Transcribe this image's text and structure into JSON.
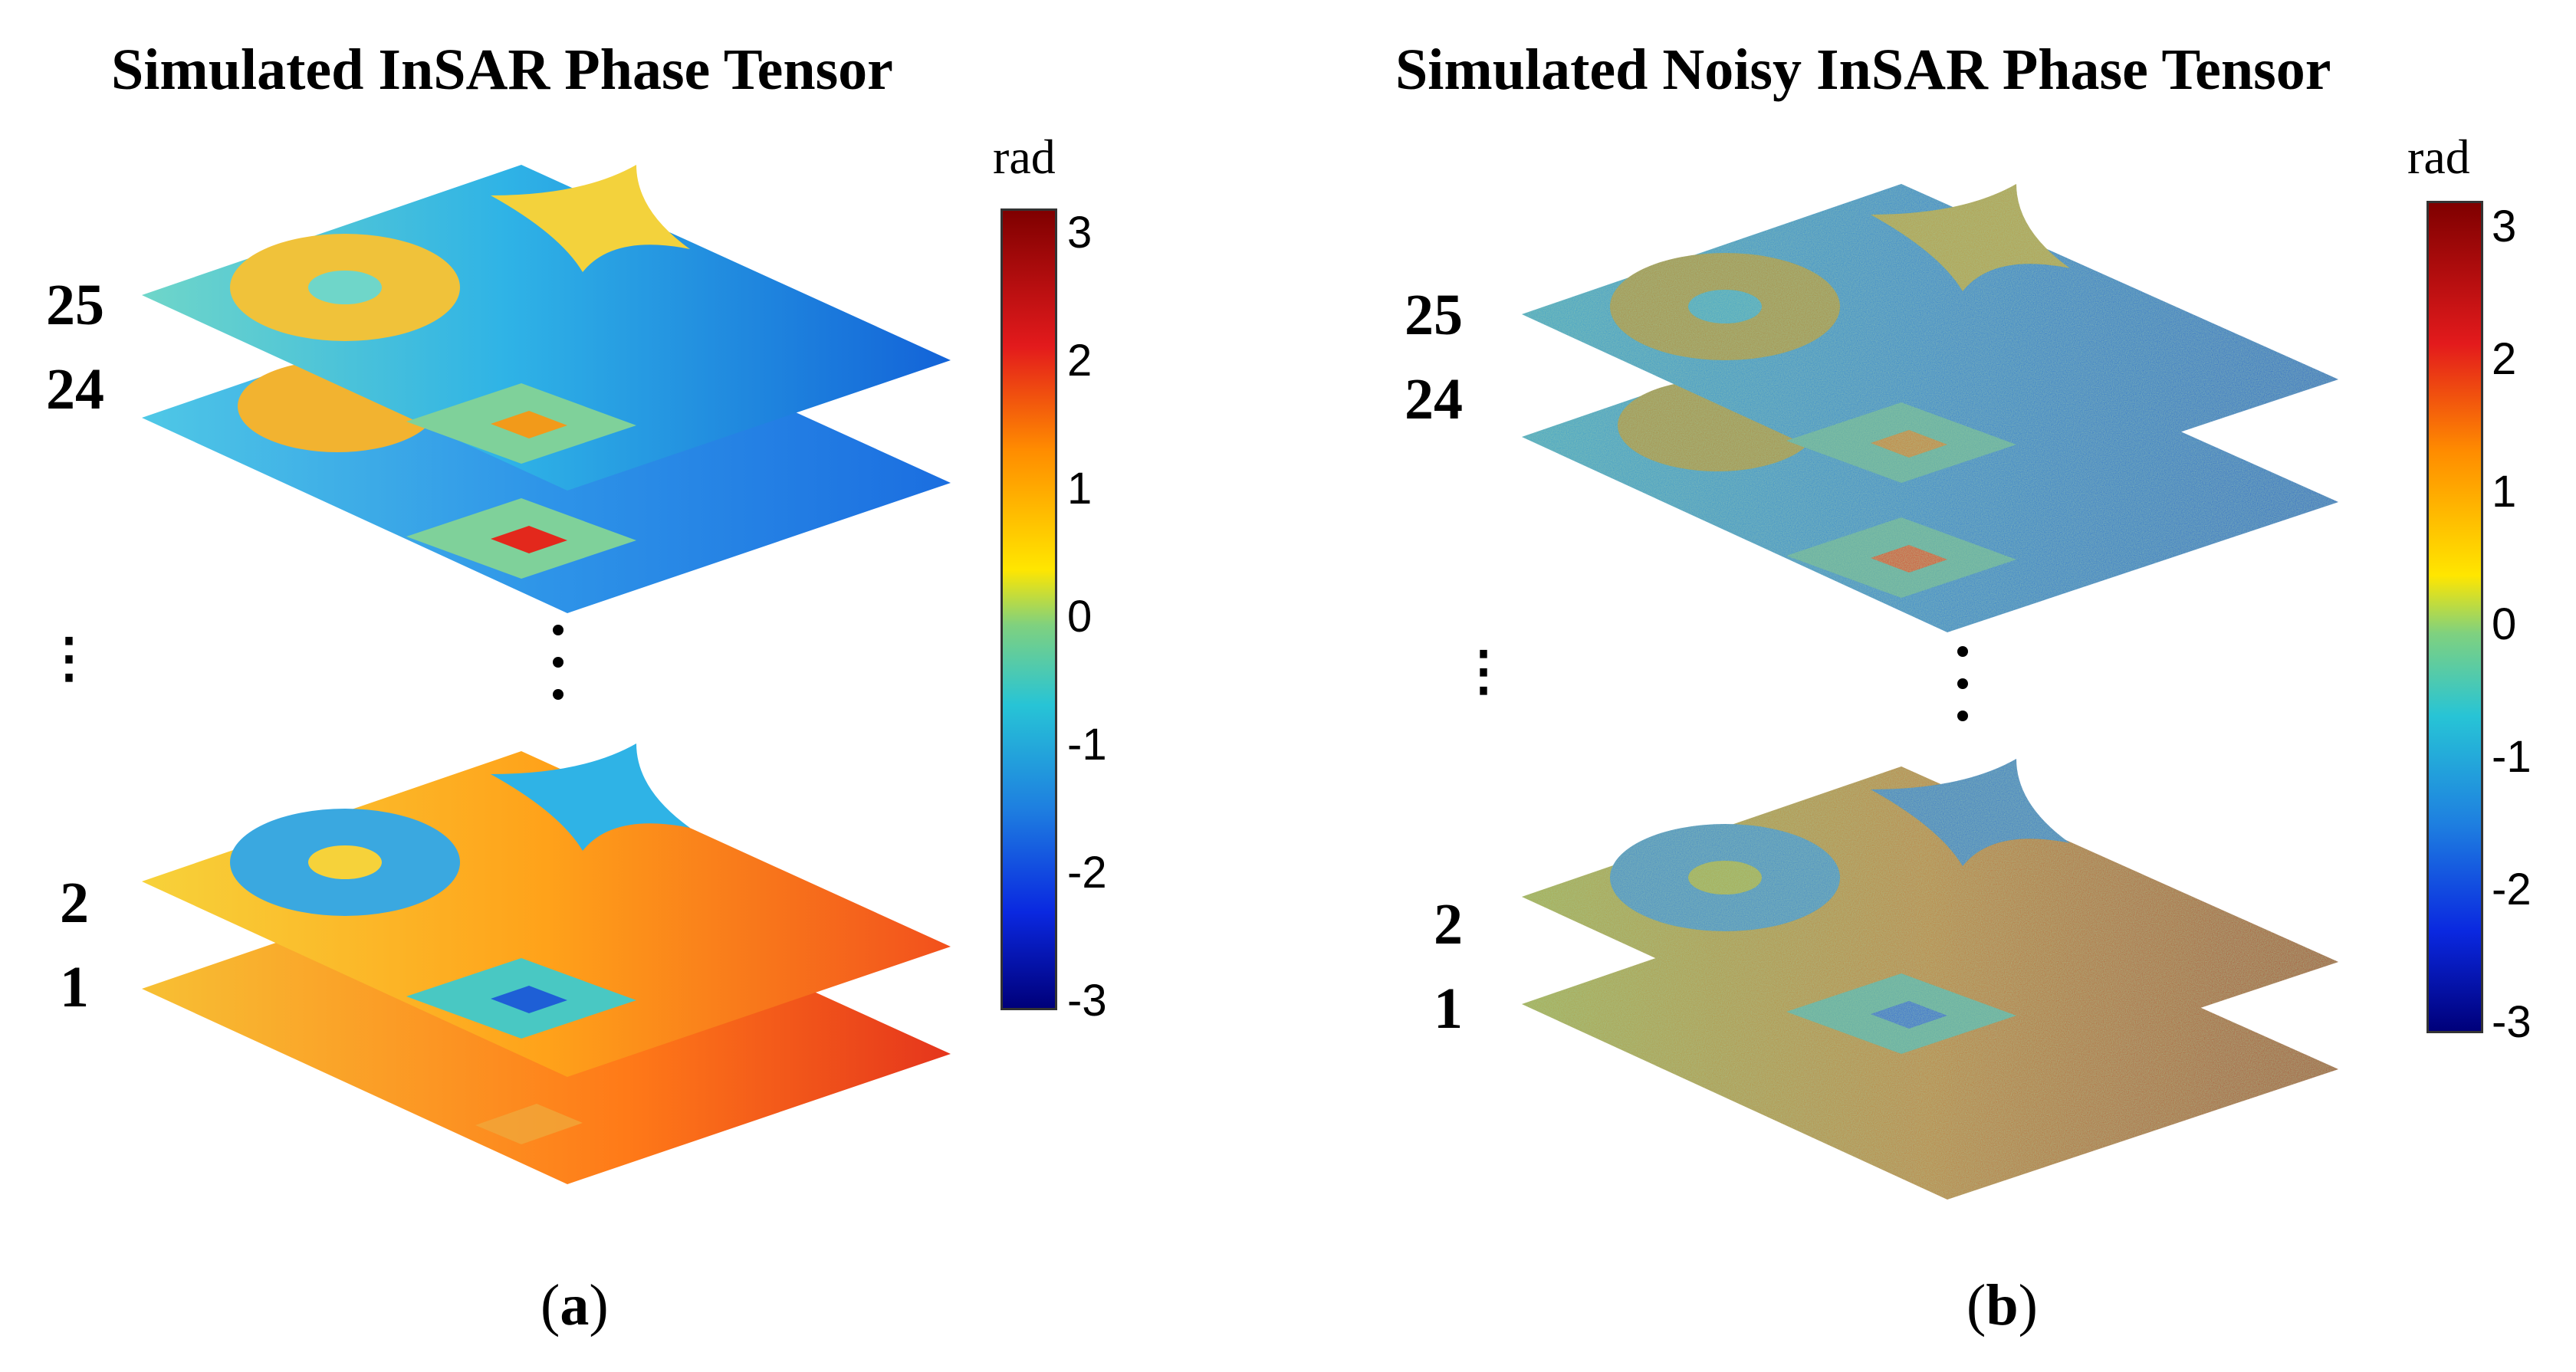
{
  "panel_a": {
    "title": "Simulated InSAR Phase Tensor",
    "caption_letter": "a",
    "layers": {
      "top1": "25",
      "top2": "24",
      "bottom1": "2",
      "bottom2": "1"
    },
    "ellipsis": "⋮",
    "colorbar": {
      "unit": "rad",
      "ticks": [
        "3",
        "2",
        "1",
        "0",
        "-1",
        "-2",
        "-3"
      ]
    }
  },
  "panel_b": {
    "title": "Simulated Noisy InSAR Phase Tensor",
    "caption_letter": "b",
    "layers": {
      "top1": "25",
      "top2": "24",
      "bottom1": "2",
      "bottom2": "1"
    },
    "ellipsis": "⋮",
    "colorbar": {
      "unit": "rad",
      "ticks": [
        "3",
        "2",
        "1",
        "0",
        "-1",
        "-2",
        "-3"
      ]
    }
  },
  "colors": {
    "dark_red": "#7f0000",
    "red": "#e31a1c",
    "orange": "#ff8c00",
    "yellow": "#ffe600",
    "green": "#7fd17f",
    "cyan": "#27c4d6",
    "blue": "#1e7fe0",
    "dark_blue": "#00007a"
  }
}
